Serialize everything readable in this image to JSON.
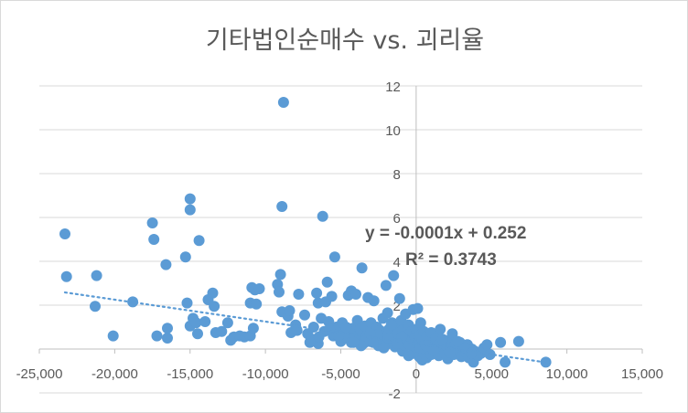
{
  "chart_data": {
    "type": "scatter",
    "title": "기타법인순매수 vs. 괴리율",
    "xlabel": "",
    "ylabel": "",
    "xlim": [
      -25000,
      15000
    ],
    "ylim": [
      -2,
      12
    ],
    "x_ticks": [
      -25000,
      -20000,
      -15000,
      -10000,
      -5000,
      0,
      5000,
      10000,
      15000
    ],
    "y_ticks": [
      -2,
      0,
      2,
      4,
      6,
      8,
      10,
      12
    ],
    "x_tick_labels": [
      "-25,000",
      "-20,000",
      "-15,000",
      "-10,000",
      "-5,000",
      "0",
      "5,000",
      "10,000",
      "15,000"
    ],
    "y_tick_labels": [
      "-2",
      "",
      "2",
      "4",
      "6",
      "8",
      "10",
      "12"
    ],
    "grid": "horizontal",
    "legend": "none",
    "point_color": "#5b9bd5",
    "trendline": {
      "type": "linear",
      "slope": -0.0001,
      "intercept": 0.252,
      "x_range": [
        -23300,
        8700
      ],
      "equation_text": "y = -0.0001x + 0.252",
      "r2_text": "R² = 0.3743"
    },
    "series": [
      {
        "points": [
          [
            -23300,
            5.25
          ],
          [
            -23200,
            3.3
          ],
          [
            -21200,
            3.35
          ],
          [
            -21300,
            1.95
          ],
          [
            -20100,
            0.6
          ],
          [
            -18800,
            2.15
          ],
          [
            -17500,
            5.75
          ],
          [
            -17400,
            5.0
          ],
          [
            -17200,
            0.6
          ],
          [
            -16600,
            3.85
          ],
          [
            -16500,
            0.95
          ],
          [
            -16500,
            0.5
          ],
          [
            -15300,
            4.2
          ],
          [
            -15200,
            2.1
          ],
          [
            -15000,
            6.85
          ],
          [
            -15000,
            6.35
          ],
          [
            -15000,
            1.05
          ],
          [
            -14800,
            1.4
          ],
          [
            -14600,
            1.2
          ],
          [
            -14500,
            0.7
          ],
          [
            -14400,
            4.95
          ],
          [
            -14000,
            1.25
          ],
          [
            -13800,
            2.25
          ],
          [
            -13500,
            2.55
          ],
          [
            -13400,
            1.95
          ],
          [
            -13300,
            0.75
          ],
          [
            -12900,
            0.8
          ],
          [
            -12500,
            1.2
          ],
          [
            -12300,
            0.4
          ],
          [
            -12100,
            0.55
          ],
          [
            -11700,
            0.6
          ],
          [
            -11400,
            0.55
          ],
          [
            -11000,
            0.6
          ],
          [
            -11000,
            2.1
          ],
          [
            -10900,
            2.8
          ],
          [
            -10800,
            0.95
          ],
          [
            -10700,
            2.7
          ],
          [
            -10600,
            2.05
          ],
          [
            -10400,
            2.75
          ],
          [
            -9200,
            2.95
          ],
          [
            -9100,
            2.6
          ],
          [
            -9000,
            3.4
          ],
          [
            -8900,
            1.7
          ],
          [
            -8800,
            11.25
          ],
          [
            -8900,
            6.5
          ],
          [
            -8500,
            1.5
          ],
          [
            -8400,
            1.75
          ],
          [
            -8300,
            0.75
          ],
          [
            -8000,
            1.1
          ],
          [
            -7900,
            0.85
          ],
          [
            -7800,
            2.5
          ],
          [
            -7400,
            1.55
          ],
          [
            -7200,
            0.7
          ],
          [
            -6900,
            0.45
          ],
          [
            -6800,
            1.0
          ],
          [
            -6600,
            2.55
          ],
          [
            -6500,
            0.25
          ],
          [
            -6500,
            2.1
          ],
          [
            -6300,
            1.4
          ],
          [
            -6200,
            6.05
          ],
          [
            -6100,
            0.8
          ],
          [
            -6000,
            2.15
          ],
          [
            -5900,
            3.05
          ],
          [
            -5800,
            1.25
          ],
          [
            -5600,
            2.4
          ],
          [
            -5500,
            0.6
          ],
          [
            -5400,
            4.2
          ],
          [
            -5300,
            1.0
          ],
          [
            -5000,
            0.35
          ],
          [
            -4900,
            1.2
          ],
          [
            -4800,
            0.7
          ],
          [
            -4600,
            0.5
          ],
          [
            -4500,
            2.45
          ],
          [
            -4400,
            0.9
          ],
          [
            -4300,
            2.65
          ],
          [
            -4300,
            0.3
          ],
          [
            -4200,
            0.95
          ],
          [
            -4100,
            0.55
          ],
          [
            -4000,
            2.5
          ],
          [
            -3900,
            1.3
          ],
          [
            -3800,
            0.45
          ],
          [
            -3700,
            0.9
          ],
          [
            -3600,
            3.7
          ],
          [
            -3500,
            0.25
          ],
          [
            -3400,
            1.05
          ],
          [
            -3300,
            0.6
          ],
          [
            -3200,
            2.35
          ],
          [
            -3100,
            0.35
          ],
          [
            -3000,
            1.2
          ],
          [
            -2900,
            0.75
          ],
          [
            -2800,
            2.2
          ],
          [
            -2700,
            0.5
          ],
          [
            -2600,
            1.0
          ],
          [
            -2500,
            0.15
          ],
          [
            -2400,
            0.85
          ],
          [
            -2300,
            0.4
          ],
          [
            -2200,
            1.4
          ],
          [
            -2100,
            0.65
          ],
          [
            -2000,
            2.9
          ],
          [
            -2000,
            0.2
          ],
          [
            -1900,
            1.65
          ],
          [
            -1800,
            0.9
          ],
          [
            -1700,
            0.35
          ],
          [
            -1600,
            1.2
          ],
          [
            -1500,
            3.35
          ],
          [
            -1500,
            0.55
          ],
          [
            -1400,
            0.1
          ],
          [
            -1300,
            1.0
          ],
          [
            -1200,
            0.7
          ],
          [
            -1100,
            2.3
          ],
          [
            -1100,
            0.3
          ],
          [
            -1000,
            1.3
          ],
          [
            -900,
            -0.1
          ],
          [
            -900,
            0.85
          ],
          [
            -800,
            0.45
          ],
          [
            -700,
            1.6
          ],
          [
            -700,
            0.15
          ],
          [
            -600,
            0.65
          ],
          [
            -500,
            -0.3
          ],
          [
            -500,
            1.1
          ],
          [
            -400,
            0.35
          ],
          [
            -300,
            0.8
          ],
          [
            -200,
            1.8
          ],
          [
            -200,
            -0.2
          ],
          [
            -100,
            0.5
          ],
          [
            0,
            0.9
          ],
          [
            0,
            0.05
          ],
          [
            100,
            0.3
          ],
          [
            100,
            1.85
          ],
          [
            200,
            -0.35
          ],
          [
            200,
            0.6
          ],
          [
            300,
            1.2
          ],
          [
            300,
            0.1
          ],
          [
            400,
            -0.5
          ],
          [
            400,
            0.45
          ],
          [
            500,
            0.8
          ],
          [
            500,
            -0.15
          ],
          [
            600,
            0.25
          ],
          [
            700,
            0.6
          ],
          [
            700,
            -0.4
          ],
          [
            800,
            0.1
          ],
          [
            900,
            0.4
          ],
          [
            1000,
            -0.25
          ],
          [
            1000,
            0.75
          ],
          [
            1100,
            0.0
          ],
          [
            1200,
            0.3
          ],
          [
            1300,
            -0.1
          ],
          [
            1300,
            0.5
          ],
          [
            1400,
            0.15
          ],
          [
            1500,
            -0.3
          ],
          [
            1600,
            0.9
          ],
          [
            1700,
            0.0
          ],
          [
            1800,
            0.35
          ],
          [
            1900,
            -0.2
          ],
          [
            2000,
            0.15
          ],
          [
            2100,
            -0.45
          ],
          [
            2200,
            0.4
          ],
          [
            2300,
            0.05
          ],
          [
            2400,
            0.7
          ],
          [
            2500,
            -0.25
          ],
          [
            2600,
            0.2
          ],
          [
            2700,
            -0.05
          ],
          [
            2900,
            0.3
          ],
          [
            3000,
            -0.35
          ],
          [
            3100,
            0.1
          ],
          [
            3300,
            -0.15
          ],
          [
            3400,
            0.2
          ],
          [
            3500,
            -0.4
          ],
          [
            3700,
            0.0
          ],
          [
            3800,
            -0.6
          ],
          [
            3900,
            -0.1
          ],
          [
            4100,
            -0.3
          ],
          [
            4300,
            -0.2
          ],
          [
            4500,
            0.05
          ],
          [
            4700,
            0.2
          ],
          [
            4900,
            -0.25
          ],
          [
            5600,
            0.3
          ],
          [
            5900,
            -0.6
          ],
          [
            6800,
            0.35
          ],
          [
            8600,
            -0.6
          ],
          [
            -1650,
            1.1
          ],
          [
            -2550,
            0.65
          ],
          [
            -3350,
            0.4
          ],
          [
            -4650,
            1.0
          ],
          [
            -5150,
            0.6
          ],
          [
            -5750,
            0.9
          ],
          [
            -6450,
            0.55
          ],
          [
            -7050,
            0.3
          ],
          [
            -950,
            0.55
          ],
          [
            -450,
            0.2
          ],
          [
            250,
            0.05
          ],
          [
            650,
            0.15
          ],
          [
            1150,
            -0.05
          ],
          [
            1750,
            0.45
          ],
          [
            2250,
            -0.15
          ],
          [
            2750,
            0.35
          ],
          [
            3250,
            0.05
          ],
          [
            3650,
            -0.2
          ],
          [
            -1250,
            0.25
          ],
          [
            -2150,
            0.05
          ],
          [
            -2850,
            0.3
          ],
          [
            -3650,
            0.15
          ],
          [
            -4150,
            0.3
          ],
          [
            -3050,
            0.7
          ],
          [
            -1850,
            0.5
          ]
        ]
      }
    ]
  }
}
